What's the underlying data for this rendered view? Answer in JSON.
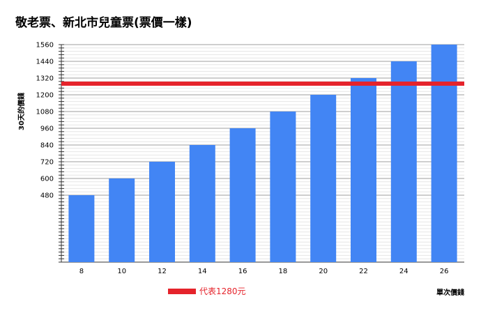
{
  "chart_data": {
    "type": "bar",
    "title": "敬老票、新北市兒童票(票價一樣)",
    "ylabel": "30天的價錢",
    "xlabel": "單次價錢",
    "categories": [
      "8",
      "10",
      "12",
      "14",
      "16",
      "18",
      "20",
      "22",
      "24",
      "26"
    ],
    "values": [
      480,
      600,
      720,
      840,
      960,
      1080,
      1200,
      1320,
      1440,
      1560
    ],
    "y_ticks": [
      "480",
      "600",
      "720",
      "840",
      "960",
      "1080",
      "1200",
      "1320",
      "1440",
      "1560"
    ],
    "ylim": [
      0,
      1560
    ],
    "grid": true,
    "reference_line": {
      "value": 1280,
      "label": "代表1280元",
      "color": "#e5232b"
    },
    "bar_color": "#4285f4",
    "legend_position": "bottom-left"
  }
}
